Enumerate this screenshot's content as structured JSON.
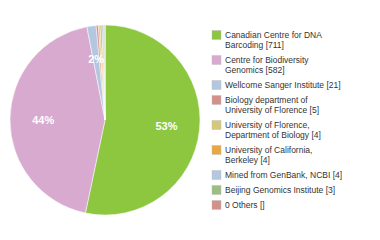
{
  "chart_data": {
    "type": "pie",
    "categories": [
      "Canadian Centre for DNA\nBarcoding [711]",
      "Centre for Biodiversity\nGenomics [582]",
      "Wellcome Sanger Institute [21]",
      "Biology department of\nUniversity of Florence [5]",
      "University of Florence,\nDepartment of Biology [4]",
      "University of California,\nBerkeley [4]",
      "Mined from GenBank, NCBI [4]",
      "Beijing Genomics Institute [3]",
      "0 Others []"
    ],
    "values": [
      53.3,
      43.63,
      1.57,
      0.37,
      0.3,
      0.3,
      0.3,
      0.22,
      0
    ],
    "value_labels": [
      "53%",
      "44%",
      "2%",
      null,
      null,
      null,
      null,
      null,
      null
    ],
    "colors": [
      "#8dc63f",
      "#d8aad0",
      "#b3c8e0",
      "#d4918a",
      "#d4c87a",
      "#e8a840",
      "#b3c8e0",
      "#9cbe80",
      "#d4918a"
    ],
    "data_labels": true,
    "legend": "right"
  }
}
